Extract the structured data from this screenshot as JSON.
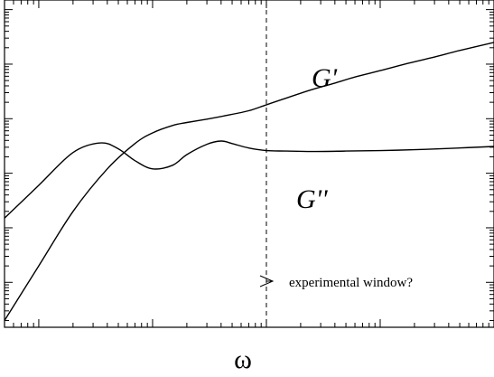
{
  "chart_data": {
    "type": "line",
    "xlabel": "ω",
    "ylabel": "",
    "x_scale": "log",
    "y_scale": "log",
    "grid": false,
    "series": [
      {
        "name": "G'",
        "x": [
          0.05,
          0.1,
          0.2,
          0.4,
          0.7,
          1.0,
          1.5,
          2.0,
          3.0,
          4.5,
          7.0,
          10.0,
          15.0,
          25.0,
          40.0,
          60.0,
          100.0,
          180.0,
          300.0,
          500.0,
          1000.0
        ],
        "y": [
          0.0002,
          0.002,
          0.02,
          0.12,
          0.35,
          0.55,
          0.75,
          0.85,
          0.98,
          1.15,
          1.4,
          1.8,
          2.4,
          3.4,
          4.5,
          5.8,
          7.6,
          10.5,
          13.5,
          17.8,
          25.0
        ]
      },
      {
        "name": "G''",
        "x": [
          0.05,
          0.1,
          0.2,
          0.35,
          0.5,
          0.7,
          1.0,
          1.5,
          2.0,
          3.0,
          4.0,
          5.0,
          7.0,
          10.0,
          15.0,
          25.0,
          50.0,
          100.0,
          200.0,
          400.0,
          1000.0
        ],
        "y": [
          0.015,
          0.06,
          0.24,
          0.36,
          0.28,
          0.17,
          0.12,
          0.14,
          0.22,
          0.34,
          0.39,
          0.35,
          0.29,
          0.26,
          0.255,
          0.25,
          0.255,
          0.26,
          0.27,
          0.285,
          0.31
        ]
      }
    ],
    "xlim": [
      0.05,
      1000
    ],
    "ylim": [
      0.00015,
      150
    ],
    "annotation": {
      "label": "experimental window?",
      "x": 10
    }
  }
}
